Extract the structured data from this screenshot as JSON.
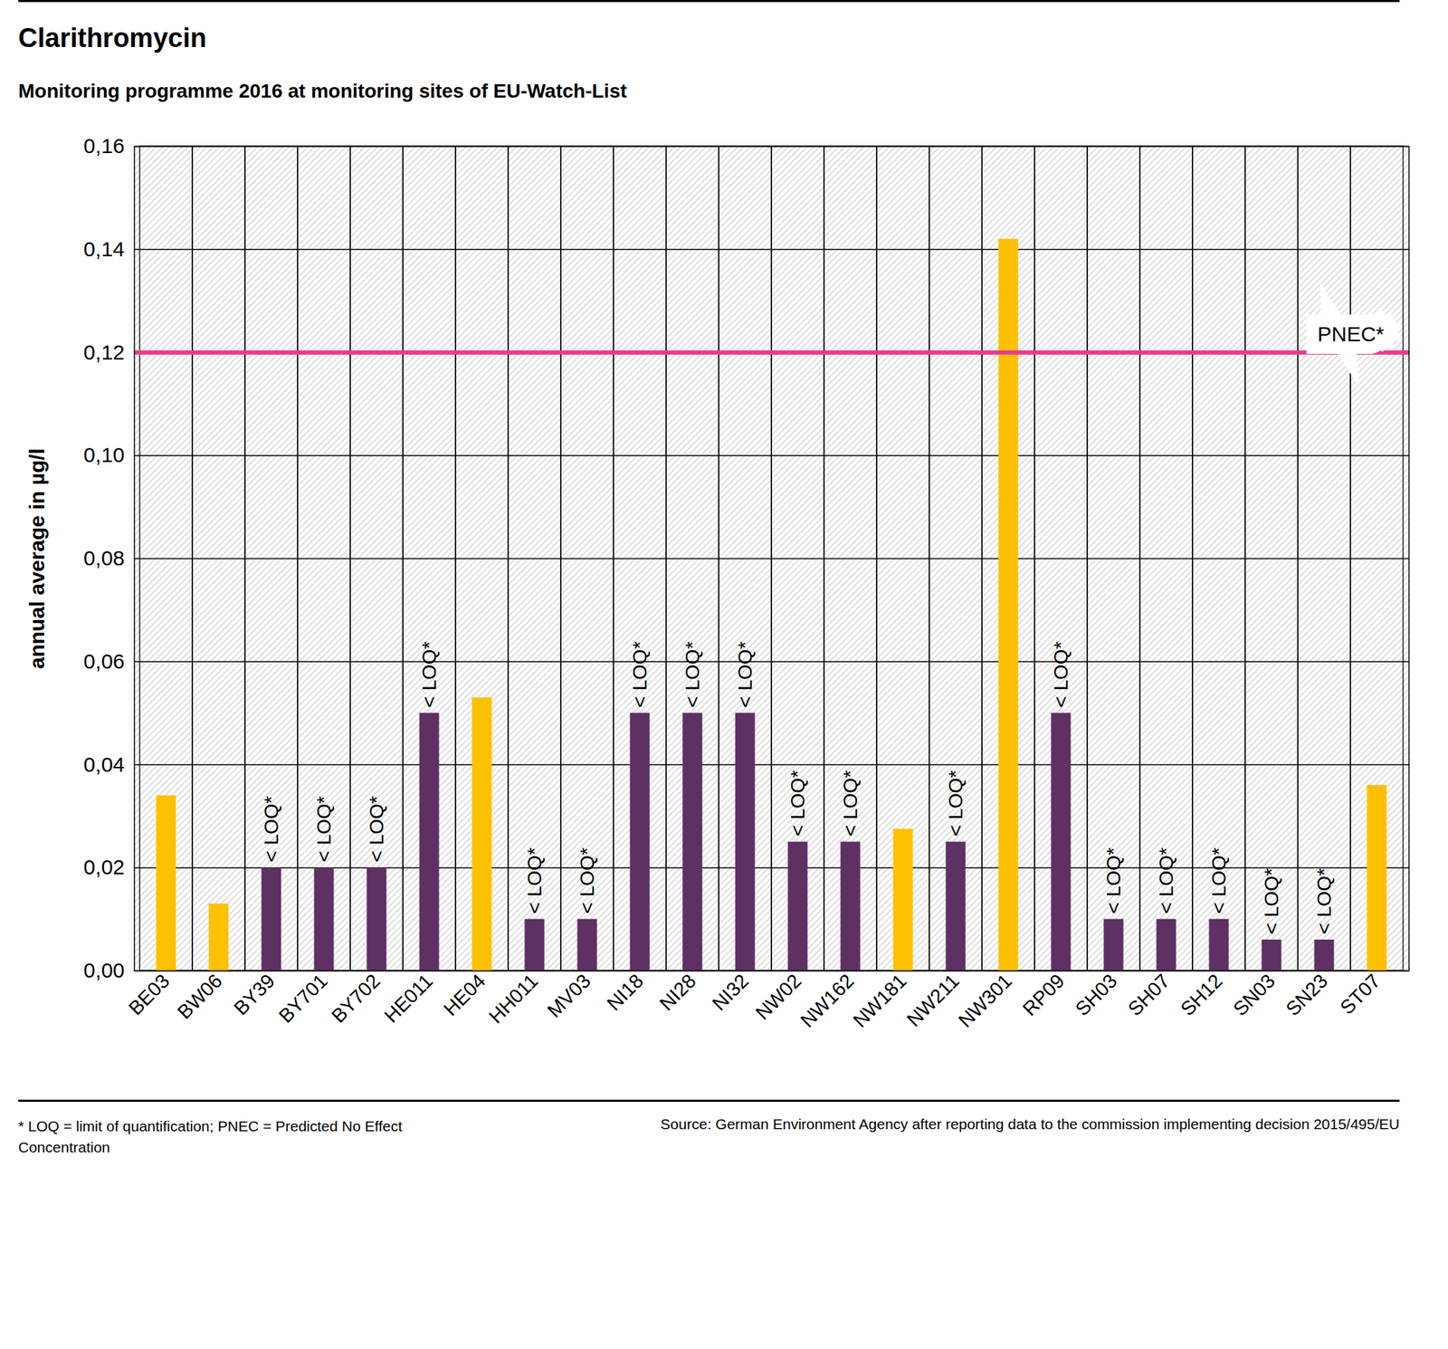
{
  "chart_data": {
    "type": "bar",
    "title": "Clarithromycin",
    "subtitle": "Monitoring programme 2016 at monitoring sites of EU-Watch-List",
    "y_label": "annual average in µg/l",
    "categories": [
      "BE03",
      "BW06",
      "BY39",
      "BY701",
      "BY702",
      "HE011",
      "HE04",
      "HH011",
      "MV03",
      "NI18",
      "NI28",
      "NI32",
      "NW02",
      "NW162",
      "NW181",
      "NW211",
      "NW301",
      "RP09",
      "SH03",
      "SH07",
      "SH12",
      "SN03",
      "SN23",
      "ST07"
    ],
    "values": [
      0.034,
      0.013,
      0.02,
      0.02,
      0.02,
      0.05,
      0.053,
      0.01,
      0.01,
      0.05,
      0.05,
      0.05,
      0.025,
      0.025,
      0.0275,
      0.025,
      0.142,
      0.05,
      0.01,
      0.01,
      0.01,
      0.006,
      0.006,
      0.036
    ],
    "colors": [
      "#ffc000",
      "#ffc000",
      "#5f3063",
      "#5f3063",
      "#5f3063",
      "#5f3063",
      "#ffc000",
      "#5f3063",
      "#5f3063",
      "#5f3063",
      "#5f3063",
      "#5f3063",
      "#5f3063",
      "#5f3063",
      "#ffc000",
      "#5f3063",
      "#ffc000",
      "#5f3063",
      "#5f3063",
      "#5f3063",
      "#5f3063",
      "#5f3063",
      "#5f3063",
      "#ffc000"
    ],
    "annotations": [
      null,
      null,
      "< LOQ*",
      "< LOQ*",
      "< LOQ*",
      "< LOQ*",
      null,
      "< LOQ*",
      "< LOQ*",
      "< LOQ*",
      "< LOQ*",
      "< LOQ*",
      "< LOQ*",
      "< LOQ*",
      null,
      "< LOQ*",
      null,
      "< LOQ*",
      "< LOQ*",
      "< LOQ*",
      "< LOQ*",
      "< LOQ*",
      "< LOQ*",
      null
    ],
    "reference_lines": [
      {
        "value": 0.12,
        "label": "PNEC*",
        "color": "#ec3a8e"
      }
    ],
    "ylim": [
      0,
      0.16
    ],
    "yticks": [
      {
        "value": 0,
        "label": "0,00"
      },
      {
        "value": 0.02,
        "label": "0,02"
      },
      {
        "value": 0.04,
        "label": "0,04"
      },
      {
        "value": 0.06,
        "label": "0,06"
      },
      {
        "value": 0.08,
        "label": "0,08"
      },
      {
        "value": 0.1,
        "label": "0,10"
      },
      {
        "value": 0.12,
        "label": "0,12"
      },
      {
        "value": 0.14,
        "label": "0,14"
      },
      {
        "value": 0.16,
        "label": "0,16"
      }
    ],
    "grid": true,
    "notes": [
      "* LOQ = limit of quantification; PNEC = Predicted No Effect Concentration",
      "Source: German Environment Agency after reporting data to the commission implementing decision 2015/495/EU"
    ]
  }
}
